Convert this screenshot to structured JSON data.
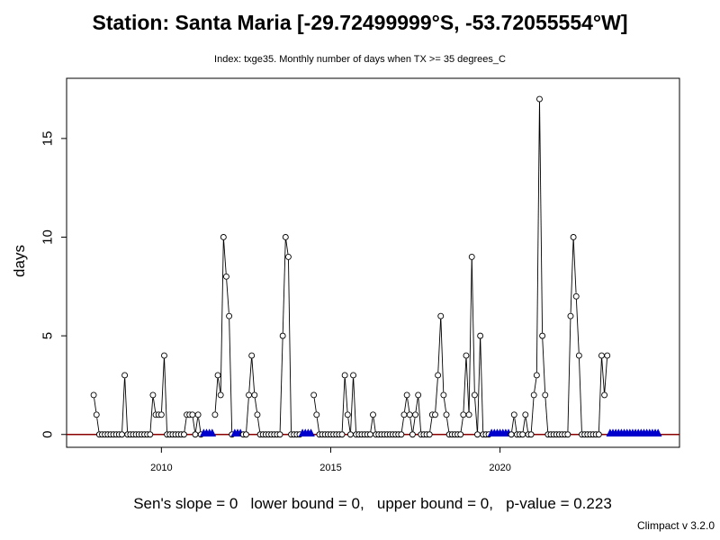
{
  "header": {
    "title": "Station: Santa Maria [-29.72499999°S, -53.72055554°W]",
    "subtitle": "Index: txge35. Monthly number of days when TX >= 35 degrees_C"
  },
  "footer": {
    "stats": "Sen's slope = 0   lower bound = 0,   upper bound = 0,   p-value = 0.223",
    "credit": "Climpact v 3.2.0"
  },
  "colors": {
    "line": "#000000",
    "trend": "#8b0000",
    "missing_marker": "#0000cd"
  },
  "chart_data": {
    "type": "line",
    "title": "Station: Santa Maria [-29.72499999°S, -53.72055554°W]",
    "subtitle": "Index: txge35. Monthly number of days when TX >= 35 degrees_C",
    "xlabel": "",
    "ylabel": "days",
    "xlim": [
      2007.2,
      2025.3
    ],
    "ylim": [
      0,
      17
    ],
    "x_ticks": [
      2010,
      2015,
      2020
    ],
    "y_ticks": [
      0,
      5,
      10,
      15
    ],
    "grid": false,
    "start_year": 2008,
    "values": [
      2,
      1,
      0,
      0,
      0,
      0,
      0,
      0,
      0,
      0,
      0,
      3,
      0,
      0,
      0,
      0,
      0,
      0,
      0,
      0,
      0,
      2,
      1,
      1,
      1,
      4,
      0,
      0,
      0,
      0,
      0,
      0,
      0,
      1,
      1,
      1,
      0,
      1,
      0,
      null,
      null,
      null,
      null,
      1,
      3,
      2,
      10,
      8,
      6,
      0,
      null,
      null,
      null,
      0,
      0,
      2,
      4,
      2,
      1,
      0,
      0,
      0,
      0,
      0,
      0,
      0,
      0,
      5,
      10,
      9,
      0,
      0,
      0,
      0,
      null,
      null,
      null,
      null,
      2,
      1,
      0,
      0,
      0,
      0,
      0,
      0,
      0,
      0,
      0,
      3,
      1,
      0,
      3,
      0,
      0,
      0,
      0,
      0,
      0,
      1,
      0,
      0,
      0,
      0,
      0,
      0,
      0,
      0,
      0,
      0,
      1,
      2,
      1,
      0,
      1,
      2,
      0,
      0,
      0,
      0,
      1,
      1,
      3,
      6,
      2,
      1,
      0,
      0,
      0,
      0,
      0,
      1,
      4,
      1,
      9,
      2,
      0,
      5,
      0,
      0,
      0,
      null,
      null,
      null,
      null,
      null,
      null,
      null,
      0,
      1,
      0,
      0,
      0,
      1,
      0,
      0,
      2,
      3,
      17,
      5,
      2,
      0,
      0,
      0,
      0,
      0,
      0,
      0,
      0,
      6,
      10,
      7,
      4,
      0,
      0,
      0,
      0,
      0,
      0,
      0,
      4,
      2,
      4,
      null,
      null,
      null,
      null,
      null,
      null,
      null,
      null,
      null,
      null,
      null,
      null,
      null,
      null,
      null,
      null,
      null,
      null
    ],
    "trend": {
      "type": "sen",
      "slope": 0,
      "intercept": 0
    },
    "missing_marker": "triangle"
  }
}
